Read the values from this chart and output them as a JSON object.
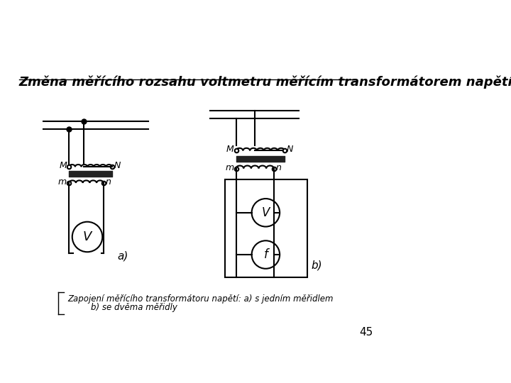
{
  "title": "Změna měřícího rozsahu voltmetru měřícím transformátorem napětí.",
  "page_number": "45",
  "caption_line1": "Zapojení měřícího transformátoru napětí: a) s jedním měřidlem",
  "caption_line2": "b) se dvěma měřidly",
  "bg_color": "#ffffff",
  "diagram_a_label": "a)",
  "diagram_b_label": "b)",
  "label_M": "M",
  "label_N": "N",
  "label_m": "m",
  "label_n": "n",
  "label_V": "V",
  "label_f": "f"
}
